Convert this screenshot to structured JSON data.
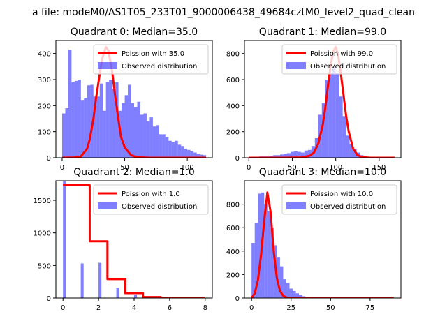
{
  "suptitle": "a file: modeM0/AS1T05_233T01_9000006438_49684cztM0_level2_quad_clean",
  "colors": {
    "hist": "#0000ff",
    "hist_alpha": 0.5,
    "fit": "#ff0000",
    "axes": "#000000",
    "bg": "#ffffff"
  },
  "chart_data": [
    {
      "type": "bar",
      "title": "Quadrant 0: Median=35.0",
      "xlim": [
        -5,
        120
      ],
      "ylim": [
        0,
        450
      ],
      "xticks": [
        0,
        50,
        100
      ],
      "xtick_labels": [
        "0",
        "50",
        "100"
      ],
      "yticks": [
        0,
        100,
        200,
        300,
        400
      ],
      "ytick_labels": [
        "0",
        "100",
        "200",
        "300",
        "400"
      ],
      "legend": {
        "position": "top-right",
        "entries": [
          "Poission with 35.0",
          "Observed distribution"
        ]
      },
      "histogram": {
        "name": "Observed distribution",
        "bin_edges": [
          0,
          2.5,
          5,
          7.5,
          10,
          12.5,
          15,
          17.5,
          20,
          22.5,
          25,
          27.5,
          30,
          32.5,
          35,
          37.5,
          40,
          42.5,
          45,
          47.5,
          50,
          52.5,
          55,
          57.5,
          60,
          62.5,
          65,
          67.5,
          70,
          72.5,
          75,
          77.5,
          80,
          82.5,
          85,
          87.5,
          90,
          92.5,
          95,
          97.5,
          100,
          102.5,
          105,
          107.5,
          110,
          112.5,
          115
        ],
        "counts": [
          170,
          190,
          415,
          290,
          295,
          300,
          222,
          230,
          278,
          280,
          235,
          235,
          285,
          180,
          290,
          300,
          265,
          290,
          180,
          210,
          240,
          280,
          210,
          195,
          215,
          165,
          170,
          140,
          155,
          120,
          125,
          90,
          90,
          80,
          65,
          60,
          65,
          50,
          45,
          35,
          30,
          25,
          20,
          15,
          12,
          10
        ]
      },
      "fit": {
        "name": "Poission with 35.0",
        "x": [
          0,
          10,
          15,
          20,
          22,
          25,
          27,
          30,
          32,
          35,
          37,
          40,
          42,
          45,
          47,
          50,
          55,
          60,
          70,
          80,
          90,
          115
        ],
        "y": [
          0,
          1,
          5,
          35,
          70,
          150,
          225,
          320,
          380,
          425,
          410,
          330,
          250,
          145,
          80,
          40,
          10,
          2,
          0,
          0,
          0,
          0
        ]
      }
    },
    {
      "type": "bar",
      "title": "Quadrant 1: Median=99.0",
      "xlim": [
        -5,
        175
      ],
      "ylim": [
        0,
        900
      ],
      "xticks": [
        0,
        50,
        100,
        150
      ],
      "xtick_labels": [
        "0",
        "50",
        "100",
        "150"
      ],
      "yticks": [
        0,
        200,
        400,
        600,
        800
      ],
      "ytick_labels": [
        "0",
        "200",
        "400",
        "600",
        "800"
      ],
      "legend": {
        "position": "top-right",
        "entries": [
          "Poission with 99.0",
          "Observed distribution"
        ]
      },
      "histogram": {
        "name": "Observed distribution",
        "bin_edges": [
          0,
          4,
          8,
          12,
          16,
          20,
          24,
          28,
          32,
          36,
          40,
          44,
          48,
          52,
          56,
          60,
          64,
          68,
          72,
          76,
          80,
          84,
          88,
          92,
          96,
          100,
          104,
          108,
          112,
          116,
          120,
          124,
          128,
          132,
          136,
          140,
          144,
          148,
          152,
          156,
          160,
          164,
          168
        ],
        "counts": [
          5,
          5,
          5,
          10,
          10,
          10,
          15,
          20,
          20,
          25,
          30,
          35,
          45,
          50,
          45,
          40,
          55,
          60,
          90,
          150,
          330,
          420,
          600,
          650,
          700,
          650,
          470,
          320,
          170,
          105,
          70,
          40,
          20,
          10,
          8,
          5,
          5,
          3,
          2,
          2,
          1,
          1
        ]
      },
      "fit": {
        "name": "Poission with 99.0",
        "x": [
          0,
          20,
          40,
          60,
          70,
          75,
          80,
          85,
          88,
          91,
          94,
          97,
          100,
          103,
          106,
          109,
          112,
          115,
          120,
          125,
          130,
          140,
          150,
          168
        ],
        "y": [
          0,
          0,
          0,
          2,
          15,
          40,
          110,
          250,
          380,
          550,
          700,
          810,
          850,
          780,
          640,
          480,
          320,
          200,
          70,
          20,
          5,
          0,
          0,
          0
        ]
      }
    },
    {
      "type": "bar",
      "title": "Quadrant 2: Median=1.0",
      "xlim": [
        -0.4,
        8.4
      ],
      "ylim": [
        0,
        1800
      ],
      "xticks": [
        0,
        2,
        4,
        6,
        8
      ],
      "xtick_labels": [
        "0",
        "2",
        "4",
        "6",
        "8"
      ],
      "yticks": [
        0,
        500,
        1000,
        1500
      ],
      "ytick_labels": [
        "0",
        "500",
        "1000",
        "1500"
      ],
      "legend": {
        "position": "top-right",
        "entries": [
          "Poission with 1.0",
          "Observed distribution"
        ]
      },
      "histogram": {
        "name": "Observed distribution",
        "bin_edges": [
          0,
          0.16,
          1,
          1.16,
          2,
          2.16,
          3,
          3.16,
          4,
          4.16,
          5,
          5.16
        ],
        "counts": [
          1800,
          0,
          530,
          0,
          540,
          0,
          160,
          0,
          50,
          0,
          10
        ]
      },
      "fit": {
        "name": "Poission with 1.0",
        "x": [
          0,
          1.5,
          1.5,
          2.5,
          2.5,
          3.5,
          3.5,
          4.5,
          4.5,
          5.5,
          5.5,
          8
        ],
        "y": [
          1730,
          1730,
          870,
          870,
          290,
          290,
          75,
          75,
          15,
          15,
          2,
          2
        ]
      }
    },
    {
      "type": "bar",
      "title": "Quadrant 3: Median=10.0",
      "xlim": [
        -4.5,
        94.5
      ],
      "ylim": [
        0,
        1000
      ],
      "xticks": [
        0,
        25,
        50,
        75
      ],
      "xtick_labels": [
        "0",
        "25",
        "50",
        "75"
      ],
      "yticks": [
        0,
        200,
        400,
        600,
        800
      ],
      "ytick_labels": [
        "0",
        "200",
        "400",
        "600",
        "800"
      ],
      "legend": {
        "position": "top-right",
        "entries": [
          "Poission with 10.0",
          "Observed distribution"
        ]
      },
      "histogram": {
        "name": "Observed distribution",
        "bin_edges": [
          0,
          2,
          4,
          6,
          8,
          10,
          12,
          14,
          16,
          18,
          20,
          22,
          24,
          26,
          28,
          30,
          32,
          34,
          36,
          38,
          40
        ],
        "counts": [
          470,
          640,
          890,
          900,
          800,
          740,
          600,
          450,
          350,
          270,
          160,
          130,
          80,
          60,
          40,
          25,
          15,
          10,
          8,
          5
        ]
      },
      "fit": {
        "name": "Poission with 10.0",
        "x": [
          0,
          2,
          4,
          6,
          8,
          10,
          12,
          14,
          16,
          18,
          20,
          22,
          25,
          30,
          40,
          60,
          90
        ],
        "y": [
          0,
          40,
          150,
          370,
          660,
          900,
          740,
          400,
          170,
          60,
          20,
          5,
          0,
          0,
          0,
          0,
          0
        ]
      }
    }
  ]
}
